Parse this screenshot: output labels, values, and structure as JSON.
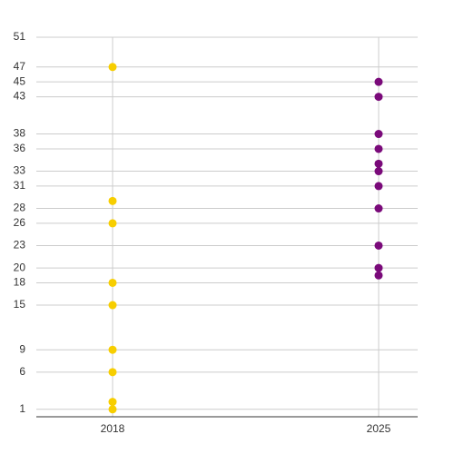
{
  "chart_data": {
    "type": "dot",
    "categories": [
      "2018",
      "2025"
    ],
    "groups": [
      {
        "color": "#f7ce00",
        "values": [
          47,
          29,
          26,
          18,
          15,
          9,
          6,
          2,
          1
        ]
      },
      {
        "color": "#7a0a7a",
        "values": [
          45,
          43,
          38,
          36,
          34,
          33,
          31,
          28,
          23,
          20,
          19
        ]
      }
    ],
    "ylim": [
      0,
      51
    ],
    "yticks": [
      1,
      6,
      9,
      15,
      18,
      20,
      23,
      26,
      28,
      31,
      33,
      36,
      38,
      43,
      45,
      47,
      51
    ],
    "grid": true
  }
}
